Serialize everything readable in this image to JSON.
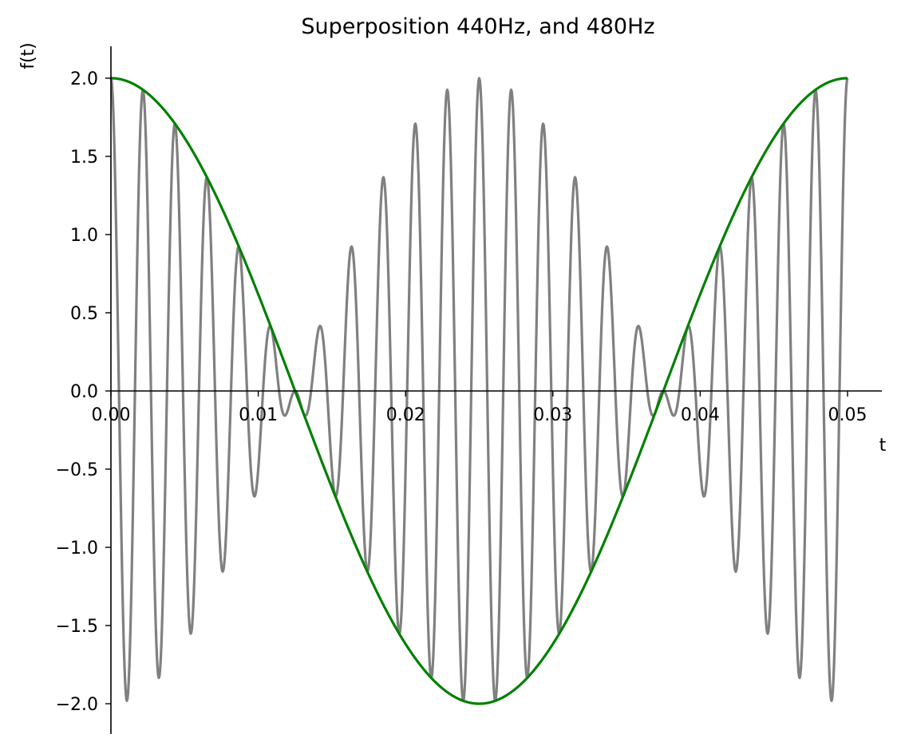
{
  "chart_data": {
    "type": "line",
    "title": "Superposition 440Hz, and 480Hz",
    "xlabel": "t",
    "ylabel": "f(t)",
    "xlim": [
      0,
      0.0527
    ],
    "ylim": [
      -2.2,
      2.2
    ],
    "x_ticks": [
      0.0,
      0.01,
      0.02,
      0.03,
      0.04,
      0.05
    ],
    "x_tick_labels": [
      "0.00",
      "0.01",
      "0.02",
      "0.03",
      "0.04",
      "0.05"
    ],
    "y_ticks": [
      2.0,
      1.5,
      1.0,
      0.5,
      0.0,
      -0.5,
      -1.0,
      -1.5,
      -2.0
    ],
    "y_tick_labels": [
      "2.0",
      "1.5",
      "1.0",
      "0.5",
      "0.0",
      "−0.5",
      "−1.0",
      "−1.5",
      "−2.0"
    ],
    "grid": false,
    "series": [
      {
        "function": "cos(2*pi*440*t) + cos(2*pi*480*t)",
        "t_range": [
          0,
          0.05
        ],
        "color": "#808080"
      },
      {
        "function": "2*cos(2*pi*20*t)",
        "t_range": [
          0,
          0.05
        ],
        "color": "#008000"
      }
    ]
  }
}
